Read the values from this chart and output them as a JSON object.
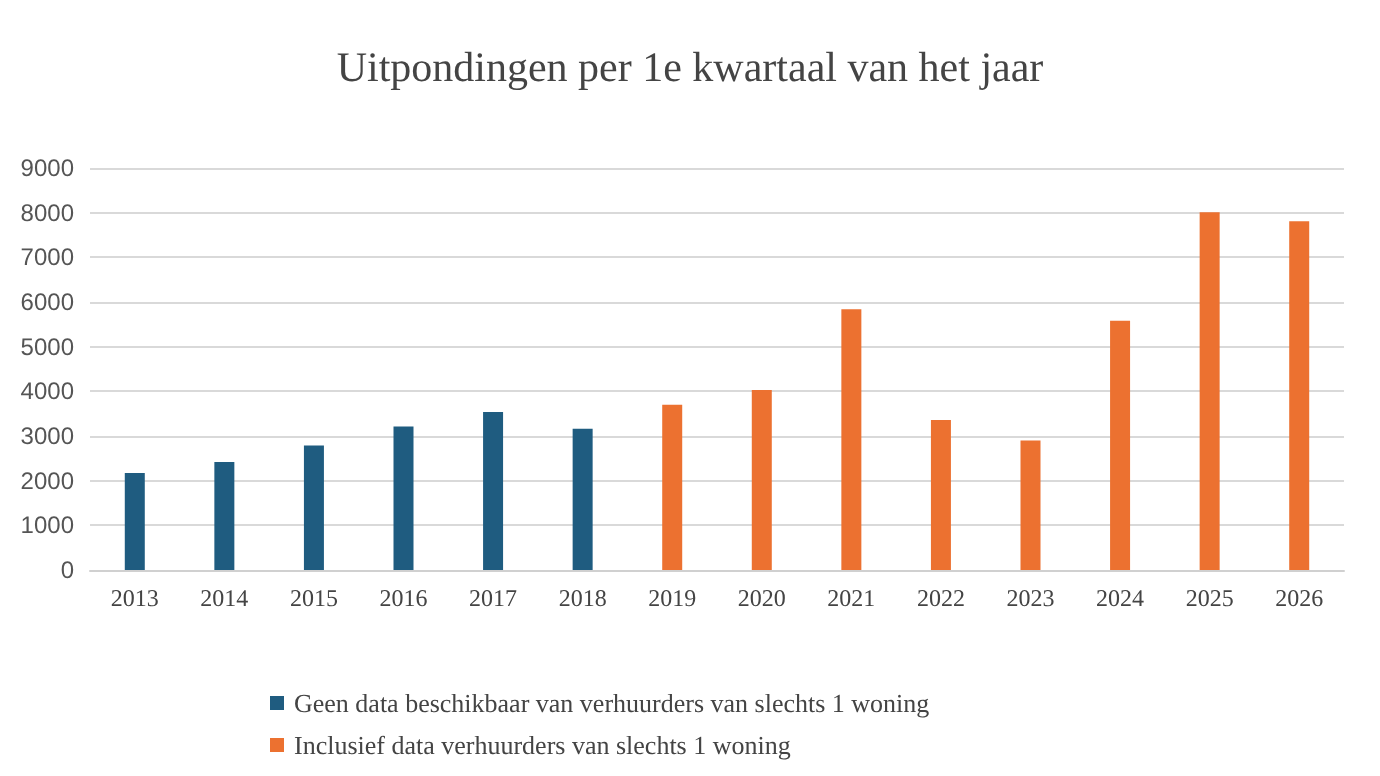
{
  "chart_data": {
    "type": "bar",
    "title": "Uitpondingen per 1e kwartaal van het jaar",
    "categories": [
      "2013",
      "2014",
      "2015",
      "2016",
      "2017",
      "2018",
      "2019",
      "2020",
      "2021",
      "2022",
      "2023",
      "2024",
      "2025",
      "2026"
    ],
    "series": [
      {
        "name": "Geen data beschikbaar van verhuurders van slechts 1 woning",
        "color": "#1f5c80",
        "values": [
          2170,
          2420,
          2790,
          3210,
          3540,
          3160,
          null,
          null,
          null,
          null,
          null,
          null,
          null,
          null
        ]
      },
      {
        "name": "Inclusief data verhuurders van slechts 1 woning",
        "color": "#ec7130",
        "values": [
          null,
          null,
          null,
          null,
          null,
          null,
          3700,
          4030,
          5840,
          3360,
          2900,
          5580,
          8010,
          7810
        ]
      }
    ],
    "ylim": [
      0,
      9000
    ],
    "yticks": [
      0,
      1000,
      2000,
      3000,
      4000,
      5000,
      6000,
      7000,
      8000,
      9000
    ],
    "grid": "y",
    "legend": "bottom"
  }
}
